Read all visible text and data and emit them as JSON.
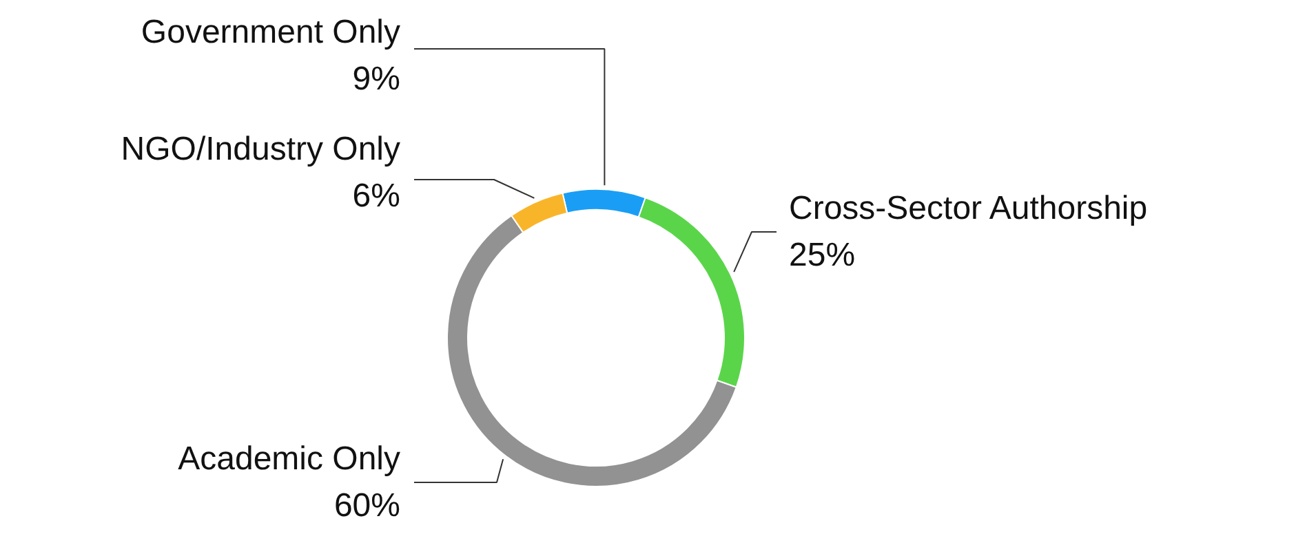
{
  "chart_data": {
    "type": "donut",
    "categories": [
      "Government Only",
      "Cross-Sector Authorship",
      "Academic Only",
      "NGO/Industry Only"
    ],
    "values": [
      9,
      25,
      60,
      6
    ],
    "value_labels": [
      "9%",
      "25%",
      "60%",
      "6%"
    ],
    "colors": [
      "#1a9ef5",
      "#5ad54a",
      "#929292",
      "#f9b52a"
    ]
  }
}
